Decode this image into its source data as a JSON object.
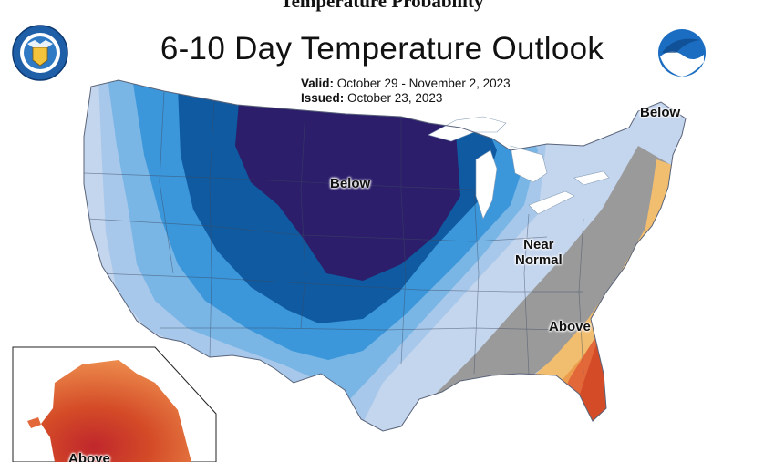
{
  "header": {
    "cut_title": "Temperature Probability",
    "title": "6-10 Day Temperature Outlook",
    "valid_label": "Valid:",
    "valid_dates": "October 29 - November 2, 2023",
    "issued_label": "Issued:",
    "issued_date": "October 23, 2023"
  },
  "logos": {
    "commerce_seal": "department-of-commerce-seal",
    "noaa_logo_text": "NOAA"
  },
  "map": {
    "labels": {
      "below_central": "Below",
      "below_northeast": "Below",
      "near_normal_line1": "Near",
      "near_normal_line2": "Normal",
      "above_southeast": "Above",
      "above_alaska": "Above"
    },
    "category_colors": {
      "below_darkest": "#2c1e6b",
      "below_dark": "#0f5aa0",
      "below_medium": "#3b96da",
      "below_light": "#79b6e6",
      "below_lighter": "#a7c8ea",
      "below_lightest": "#c4d5ee",
      "near_normal": "#9a9a9a",
      "above_light": "#f1bd6e",
      "above_medium": "#eb9c4c",
      "above_dark": "#e2683a",
      "above_darker": "#d44b27",
      "above_darkest": "#c0272c"
    }
  }
}
